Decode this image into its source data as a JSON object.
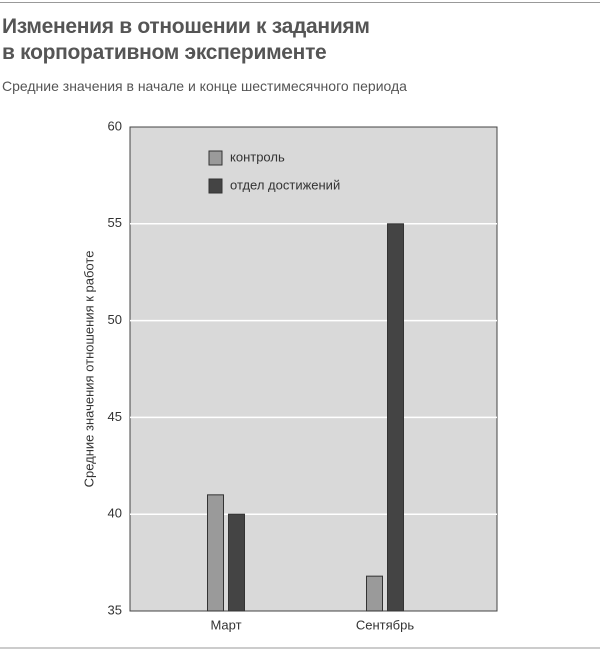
{
  "chart_data": {
    "type": "bar",
    "title": "Изменения в отношении к заданиям в корпоративном эксперименте",
    "subtitle": "Средние значения в начале и конце шестимесячного периода",
    "y_label": "Средние значения отношения к работе",
    "categories": [
      "Март",
      "Сентябрь"
    ],
    "series": [
      {
        "name": "контроль",
        "color": "#9a9a9a",
        "values": [
          41,
          36.8
        ]
      },
      {
        "name": "отдел достижений",
        "color": "#444444",
        "values": [
          40,
          55
        ]
      }
    ],
    "ylim": [
      35,
      60
    ],
    "yticks": [
      35,
      40,
      45,
      50,
      55,
      60
    ],
    "grid": true
  }
}
